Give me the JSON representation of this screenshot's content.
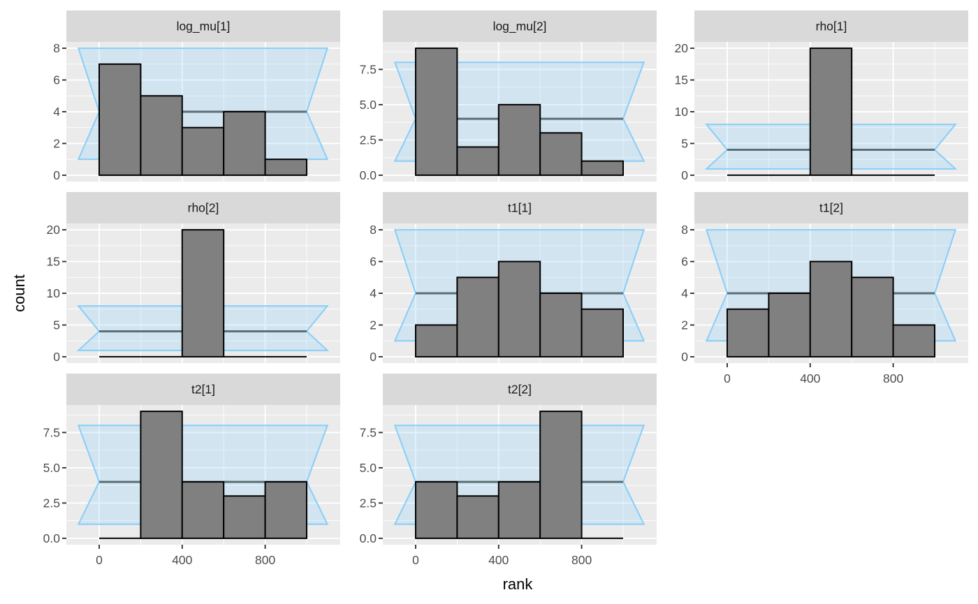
{
  "chart_data": {
    "type": "bar",
    "subtype": "faceted rank histogram with uniform confidence band",
    "xlabel": "rank",
    "ylabel": "count",
    "x_ticks": [
      0,
      400,
      800
    ],
    "x_range": [
      -100,
      1100
    ],
    "bin_edges": [
      0,
      200,
      400,
      600,
      800,
      1000
    ],
    "band": {
      "lower": 1,
      "median": 4,
      "upper": 8,
      "x_from": -100,
      "x_to": 1100,
      "notch_at": [
        0,
        1000
      ]
    },
    "colors": {
      "bar_fill": "#808080",
      "bar_outline": "#000000",
      "band_fill": "#cbe3ed",
      "band_outline": "#87cefa",
      "median_line": "#5a6f78",
      "panel_bg": "#ebebeb",
      "strip_bg": "#d9d9d9",
      "grid": "#ffffff"
    },
    "panels": [
      {
        "title": "log_mu[1]",
        "counts": [
          7,
          5,
          3,
          4,
          1
        ],
        "y_ticks": [
          0,
          2,
          4,
          6,
          8
        ],
        "y_tick_labels": [
          "0",
          "2",
          "4",
          "6",
          "8"
        ],
        "ylim": [
          0,
          8
        ]
      },
      {
        "title": "log_mu[2]",
        "counts": [
          9,
          2,
          5,
          3,
          1
        ],
        "y_ticks": [
          0,
          2.5,
          5,
          7.5
        ],
        "y_tick_labels": [
          "0.0",
          "2.5",
          "5.0",
          "7.5"
        ],
        "ylim": [
          0,
          9
        ]
      },
      {
        "title": "rho[1]",
        "counts": [
          0,
          0,
          20,
          0,
          0
        ],
        "y_ticks": [
          0,
          5,
          10,
          15,
          20
        ],
        "y_tick_labels": [
          "0",
          "5",
          "10",
          "15",
          "20"
        ],
        "ylim": [
          0,
          20
        ]
      },
      {
        "title": "rho[2]",
        "counts": [
          0,
          0,
          20,
          0,
          0
        ],
        "y_ticks": [
          0,
          5,
          10,
          15,
          20
        ],
        "y_tick_labels": [
          "0",
          "5",
          "10",
          "15",
          "20"
        ],
        "ylim": [
          0,
          20
        ]
      },
      {
        "title": "t1[1]",
        "counts": [
          2,
          5,
          6,
          4,
          3
        ],
        "y_ticks": [
          0,
          2,
          4,
          6,
          8
        ],
        "y_tick_labels": [
          "0",
          "2",
          "4",
          "6",
          "8"
        ],
        "ylim": [
          0,
          8
        ]
      },
      {
        "title": "t1[2]",
        "counts": [
          3,
          4,
          6,
          5,
          2
        ],
        "y_ticks": [
          0,
          2,
          4,
          6,
          8
        ],
        "y_tick_labels": [
          "0",
          "2",
          "4",
          "6",
          "8"
        ],
        "ylim": [
          0,
          8
        ]
      },
      {
        "title": "t2[1]",
        "counts": [
          0,
          9,
          4,
          3,
          4
        ],
        "y_ticks": [
          0,
          2.5,
          5,
          7.5
        ],
        "y_tick_labels": [
          "0.0",
          "2.5",
          "5.0",
          "7.5"
        ],
        "ylim": [
          0,
          9
        ]
      },
      {
        "title": "t2[2]",
        "counts": [
          4,
          3,
          4,
          9,
          0
        ],
        "y_ticks": [
          0,
          2.5,
          5,
          7.5
        ],
        "y_tick_labels": [
          "0.0",
          "2.5",
          "5.0",
          "7.5"
        ],
        "ylim": [
          0,
          9
        ]
      }
    ],
    "x_axis_shown_on": [
      "t1[2]",
      "t2[1]",
      "t2[2]"
    ],
    "grid": true,
    "legend": "none"
  }
}
